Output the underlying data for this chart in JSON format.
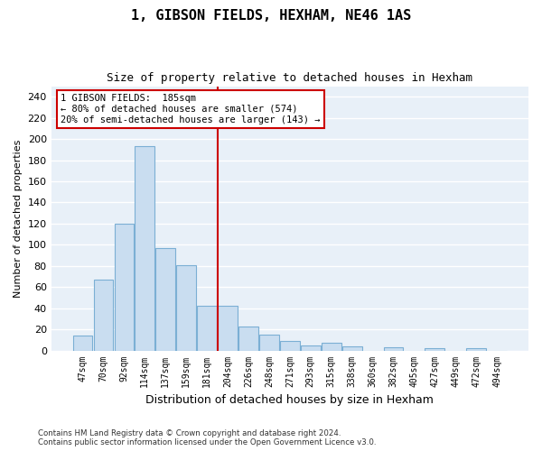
{
  "title1": "1, GIBSON FIELDS, HEXHAM, NE46 1AS",
  "title2": "Size of property relative to detached houses in Hexham",
  "xlabel": "Distribution of detached houses by size in Hexham",
  "ylabel": "Number of detached properties",
  "footer1": "Contains HM Land Registry data © Crown copyright and database right 2024.",
  "footer2": "Contains public sector information licensed under the Open Government Licence v3.0.",
  "annotation_line1": "1 GIBSON FIELDS:  185sqm",
  "annotation_line2": "← 80% of detached houses are smaller (574)",
  "annotation_line3": "20% of semi-detached houses are larger (143) →",
  "bin_labels": [
    "47sqm",
    "70sqm",
    "92sqm",
    "114sqm",
    "137sqm",
    "159sqm",
    "181sqm",
    "204sqm",
    "226sqm",
    "248sqm",
    "271sqm",
    "293sqm",
    "315sqm",
    "338sqm",
    "360sqm",
    "382sqm",
    "405sqm",
    "427sqm",
    "449sqm",
    "472sqm",
    "494sqm"
  ],
  "bin_values": [
    14,
    67,
    120,
    193,
    97,
    81,
    42,
    42,
    23,
    15,
    9,
    5,
    7,
    4,
    0,
    3,
    0,
    2,
    0,
    2,
    0
  ],
  "bar_color": "#c9ddf0",
  "bar_edge_color": "#7bafd4",
  "vline_x_index": 6.5,
  "vline_color": "#cc0000",
  "annotation_box_color": "#cc0000",
  "background_color": "#e8f0f8",
  "grid_color": "#ffffff",
  "ylim": [
    0,
    250
  ],
  "yticks": [
    0,
    20,
    40,
    60,
    80,
    100,
    120,
    140,
    160,
    180,
    200,
    220,
    240
  ]
}
